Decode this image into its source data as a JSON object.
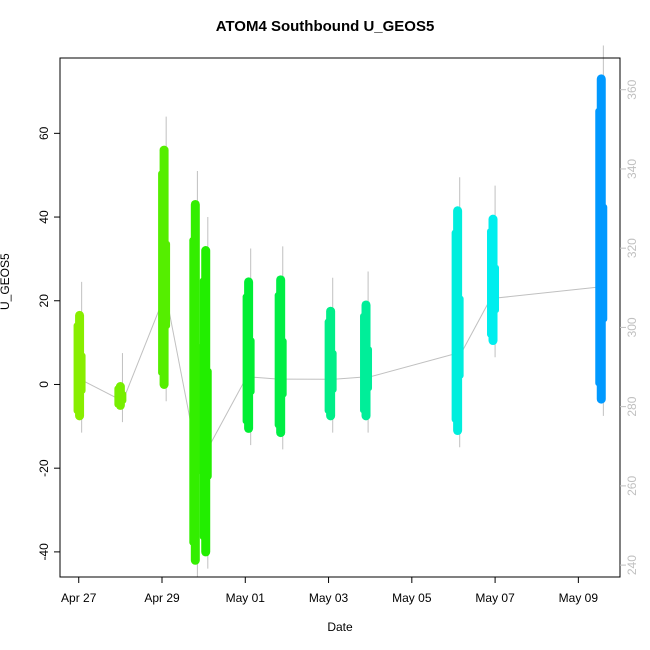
{
  "chart_data": {
    "type": "scatter",
    "title": "ATOM4 Southbound U_GEOS5",
    "xlabel": "Date",
    "ylabel": "U_GEOS5",
    "x_ticks": [
      "Apr 27",
      "Apr 29",
      "May 01",
      "May 03",
      "May 05",
      "May 07",
      "May 09"
    ],
    "x_tick_days": [
      0,
      2,
      4,
      6,
      8,
      10,
      12
    ],
    "xlim_days": [
      -0.45,
      13.0
    ],
    "ylim": [
      -46,
      78
    ],
    "y_ticks": [
      -40,
      -20,
      0,
      20,
      40,
      60
    ],
    "secondary_axis": {
      "label": "",
      "ticks": [
        240,
        260,
        280,
        300,
        320,
        340,
        360
      ],
      "ylim": [
        237,
        368
      ],
      "color": "#c0c0c0"
    },
    "grid": false,
    "series": [
      {
        "day": 0.02,
        "min": -7.5,
        "max": 16.5,
        "color": "#88ee00"
      },
      {
        "day": 1.0,
        "min": -5,
        "max": -0.5,
        "color": "#77ee00"
      },
      {
        "day": 2.05,
        "min": 0,
        "max": 56,
        "color": "#55ee00"
      },
      {
        "day": 2.8,
        "min": -42,
        "max": 43,
        "color": "#33ee00"
      },
      {
        "day": 3.05,
        "min": -40,
        "max": 32,
        "color": "#22ee00"
      },
      {
        "day": 4.08,
        "min": -10.5,
        "max": 24.5,
        "color": "#00ee33"
      },
      {
        "day": 4.85,
        "min": -11.5,
        "max": 25,
        "color": "#00ee44"
      },
      {
        "day": 6.05,
        "min": -7.5,
        "max": 17.5,
        "color": "#00ee88"
      },
      {
        "day": 6.9,
        "min": -7.5,
        "max": 19,
        "color": "#00ee99"
      },
      {
        "day": 9.1,
        "min": -11,
        "max": 41.5,
        "color": "#00eedd"
      },
      {
        "day": 9.95,
        "min": 10.5,
        "max": 39.5,
        "color": "#00eeee"
      },
      {
        "day": 12.55,
        "min": -3.5,
        "max": 73,
        "color": "#0099ff"
      }
    ],
    "reference_line_color": "#c0c0c0"
  }
}
